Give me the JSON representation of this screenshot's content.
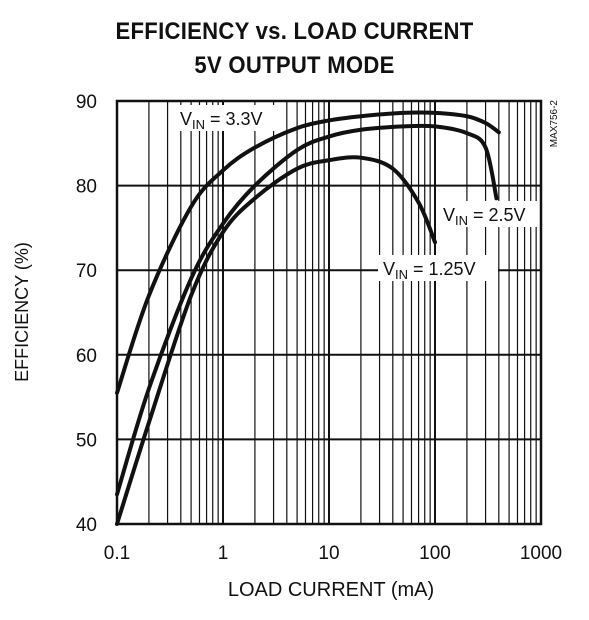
{
  "chart_data": {
    "type": "line",
    "title": "EFFICIENCY vs. LOAD CURRENT",
    "subtitle": "5V OUTPUT MODE",
    "xlabel": "LOAD CURRENT (mA)",
    "ylabel": "EFFICIENCY (%)",
    "figure_id": "MAX756-2",
    "xscale": "log",
    "xlim": [
      0.1,
      1000
    ],
    "ylim": [
      40,
      90
    ],
    "xticks": [
      0.1,
      1,
      10,
      100,
      1000
    ],
    "xtick_labels": [
      "0.1",
      "1",
      "10",
      "100",
      "1000"
    ],
    "yticks": [
      40,
      50,
      60,
      70,
      80,
      90
    ],
    "ytick_labels": [
      "40",
      "50",
      "60",
      "70",
      "80",
      "90"
    ],
    "grid": true,
    "series": [
      {
        "name": "VIN = 3.3V",
        "label_main": "V",
        "label_sub": "IN",
        "label_rest": " = 3.3V",
        "x": [
          0.1,
          0.2,
          0.5,
          1,
          2,
          5,
          10,
          20,
          50,
          100,
          200,
          300,
          400
        ],
        "y": [
          55.5,
          67,
          77.5,
          81.8,
          84.5,
          86.8,
          87.7,
          88.2,
          88.6,
          88.6,
          88.2,
          87.4,
          86.3
        ]
      },
      {
        "name": "VIN = 2.5V",
        "label_main": "V",
        "label_sub": "IN",
        "label_rest": " = 2.5V",
        "x": [
          0.1,
          0.2,
          0.5,
          1,
          2,
          5,
          10,
          20,
          50,
          100,
          200,
          300,
          380
        ],
        "y": [
          43.5,
          56,
          69,
          75.5,
          80,
          84.2,
          85.8,
          86.6,
          87,
          87,
          86.2,
          84.5,
          78.5
        ]
      },
      {
        "name": "VIN = 1.25V",
        "label_main": "V",
        "label_sub": "IN",
        "label_rest": " = 1.25V",
        "x": [
          0.1,
          0.2,
          0.5,
          1,
          2,
          5,
          10,
          20,
          40,
          70,
          100
        ],
        "y": [
          40,
          52,
          67,
          74.5,
          78.5,
          82,
          83,
          83.3,
          82,
          78,
          73.3
        ]
      }
    ]
  }
}
